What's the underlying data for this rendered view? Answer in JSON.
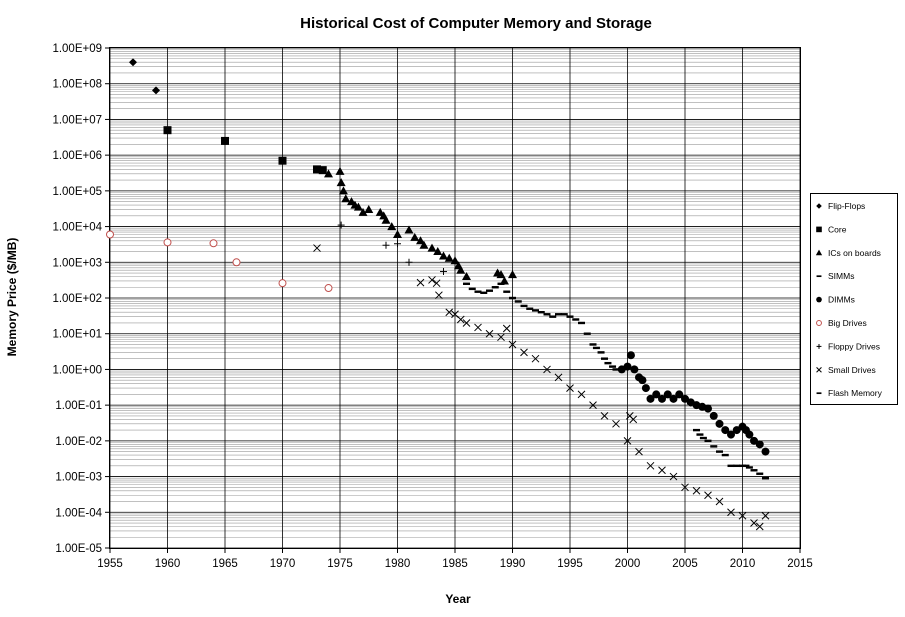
{
  "chart_data": {
    "type": "scatter",
    "title": "Historical Cost of Computer Memory and Storage",
    "xlabel": "Year",
    "ylabel": "Memory Price ($/MB)",
    "xlim": [
      1955,
      2015
    ],
    "x_ticks": [
      "1955",
      "1960",
      "1965",
      "1970",
      "1975",
      "1980",
      "1985",
      "1990",
      "1995",
      "2000",
      "2005",
      "2010",
      "2015"
    ],
    "y_scale": "log",
    "ylim": [
      1e-05,
      1000000000
    ],
    "y_ticks": [
      "1.00E+09",
      "1.00E+08",
      "1.00E+07",
      "1.00E+06",
      "1.00E+05",
      "1.00E+04",
      "1.00E+03",
      "1.00E+02",
      "1.00E+01",
      "1.00E+00",
      "1.00E-01",
      "1.00E-02",
      "1.00E-03",
      "1.00E-04",
      "1.00E-05"
    ],
    "grid": true,
    "legend_position": "right",
    "series": [
      {
        "name": "Flip-Flops",
        "marker": "diamond",
        "color": "#000000",
        "x": [
          1957,
          1959
        ],
        "y": [
          400000000,
          65000000
        ]
      },
      {
        "name": "Core",
        "marker": "square",
        "color": "#000000",
        "x": [
          1960,
          1965,
          1970,
          1973,
          1973.5
        ],
        "y": [
          5000000,
          2500000,
          700000,
          400000,
          380000
        ]
      },
      {
        "name": "ICs on boards",
        "marker": "triangle",
        "color": "#000000",
        "x": [
          1974,
          1975,
          1975.1,
          1975.3,
          1975.5,
          1976,
          1976.3,
          1976.6,
          1977,
          1977.5,
          1978.5,
          1978.8,
          1979,
          1979.5,
          1980,
          1981,
          1981.5,
          1982,
          1982.3,
          1983,
          1983.5,
          1984,
          1984.5,
          1985,
          1985.3,
          1985.5,
          1986,
          1988.7,
          1989,
          1989.3,
          1990
        ],
        "y": [
          300000,
          350000,
          170000,
          100000,
          60000,
          50000,
          40000,
          35000,
          25000,
          30000,
          25000,
          20000,
          15000,
          10000,
          6000,
          8000,
          5000,
          4000,
          3000,
          2500,
          2000,
          1500,
          1300,
          1100,
          800,
          600,
          400,
          500,
          450,
          300,
          450
        ]
      },
      {
        "name": "SIMMs",
        "marker": "dash",
        "color": "#000000",
        "x": [
          1986,
          1986.5,
          1987,
          1987.5,
          1988,
          1988.5,
          1989,
          1989.5,
          1990,
          1990.5,
          1991,
          1991.5,
          1992,
          1992.5,
          1993,
          1993.5,
          1994,
          1994.5,
          1995,
          1995.5,
          1996,
          1996.5,
          1997,
          1997.3,
          1997.7,
          1998,
          1998.3,
          1998.7,
          1999
        ],
        "y": [
          250,
          180,
          150,
          140,
          160,
          200,
          250,
          150,
          100,
          80,
          60,
          50,
          45,
          40,
          35,
          30,
          35,
          35,
          30,
          25,
          20,
          10,
          5,
          4,
          3,
          2,
          1.5,
          1.2,
          1
        ]
      },
      {
        "name": "DIMMs",
        "marker": "circle",
        "color": "#000000",
        "x": [
          1999.5,
          2000,
          2000.3,
          2000.6,
          2001,
          2001.3,
          2001.6,
          2002,
          2002.5,
          2003,
          2003.5,
          2004,
          2004.5,
          2005,
          2005.5,
          2006,
          2006.5,
          2007,
          2007.5,
          2008,
          2008.5,
          2009,
          2009.5,
          2010,
          2010.3,
          2010.6,
          2011,
          2011.5,
          2012
        ],
        "y": [
          1,
          1.2,
          2.5,
          1,
          0.6,
          0.5,
          0.3,
          0.15,
          0.2,
          0.15,
          0.2,
          0.15,
          0.2,
          0.15,
          0.12,
          0.1,
          0.09,
          0.08,
          0.05,
          0.03,
          0.02,
          0.015,
          0.02,
          0.025,
          0.02,
          0.015,
          0.01,
          0.008,
          0.005
        ]
      },
      {
        "name": "Big Drives",
        "marker": "open-circle",
        "color": "#c0504d",
        "x": [
          1955,
          1960,
          1964,
          1966,
          1970,
          1974
        ],
        "y": [
          6000,
          3600,
          3400,
          1000,
          260,
          190
        ]
      },
      {
        "name": "Floppy Drives",
        "marker": "plus",
        "color": "#000000",
        "x": [
          1975.1,
          1979,
          1980,
          1981,
          1984
        ],
        "y": [
          11000,
          3000,
          3300,
          1000,
          550
        ]
      },
      {
        "name": "Small Drives",
        "marker": "x",
        "color": "#000000",
        "x": [
          1973,
          1982,
          1983,
          1983.4,
          1983.6,
          1984.5,
          1985,
          1985.5,
          1986,
          1987,
          1988,
          1989,
          1989.5,
          1990,
          1991,
          1992,
          1993,
          1994,
          1995,
          1996,
          1997,
          1998,
          1999,
          2000,
          2000.2,
          2000.5,
          2001,
          2002,
          2003,
          2004,
          2005,
          2006,
          2007,
          2008,
          2009,
          2010,
          2011,
          2011.5,
          2012
        ],
        "y": [
          2500,
          270,
          320,
          260,
          120,
          40,
          35,
          25,
          20,
          15,
          10,
          8,
          14,
          5,
          3,
          2,
          1,
          0.6,
          0.3,
          0.2,
          0.1,
          0.05,
          0.03,
          0.01,
          0.05,
          0.04,
          0.005,
          0.002,
          0.0015,
          0.001,
          0.0005,
          0.0004,
          0.0003,
          0.0002,
          0.0001,
          8e-05,
          5e-05,
          4e-05,
          8e-05
        ]
      },
      {
        "name": "Flash Memory",
        "marker": "dash",
        "color": "#000000",
        "x": [
          2006,
          2006.3,
          2006.6,
          2007,
          2007.5,
          2008,
          2008.5,
          2009,
          2009.5,
          2010,
          2010.3,
          2010.6,
          2011,
          2011.5,
          2012
        ],
        "y": [
          0.02,
          0.015,
          0.012,
          0.01,
          0.007,
          0.005,
          0.004,
          0.002,
          0.002,
          0.002,
          0.002,
          0.0018,
          0.0015,
          0.0012,
          0.0009
        ]
      }
    ]
  }
}
